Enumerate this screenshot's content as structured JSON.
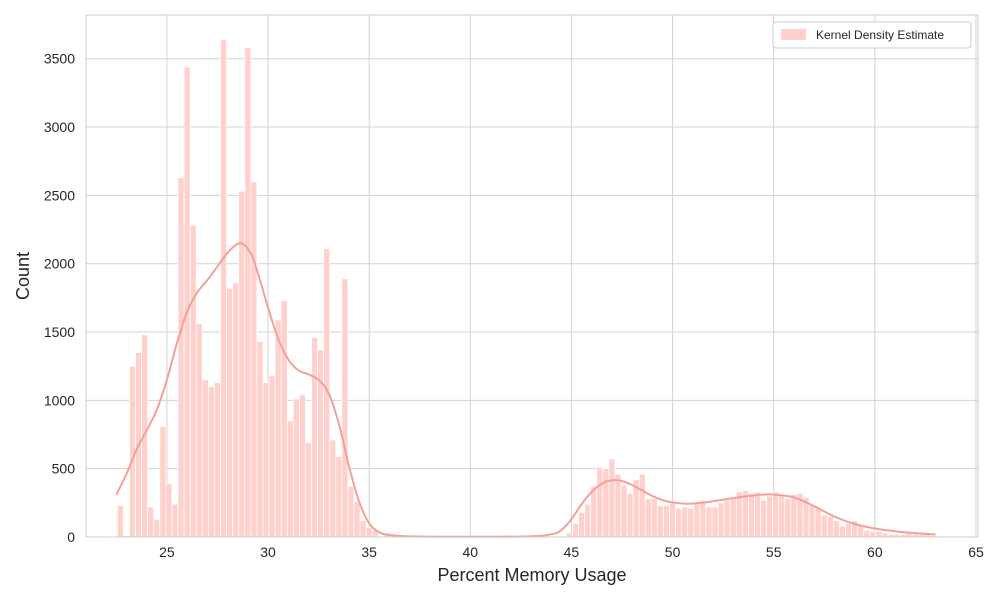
{
  "chart_data": {
    "type": "bar",
    "xlabel": "Percent Memory Usage",
    "ylabel": "Count",
    "xlim": [
      21.0,
      65.1
    ],
    "ylim": [
      0,
      3820
    ],
    "xticks": [
      25,
      30,
      35,
      40,
      45,
      50,
      55,
      60,
      65
    ],
    "yticks": [
      0,
      500,
      1000,
      1500,
      2000,
      2500,
      3000,
      3500
    ],
    "grid": true,
    "legend_position": "top-right",
    "bin_width": 0.3,
    "colors": {
      "bar": "#ffd0cc",
      "kde": "#f4a09a",
      "grid": "#d3d3d3"
    },
    "series": [
      {
        "name": "Kernel Density Estimate",
        "bars": [
          {
            "x": 22.7,
            "y": 230
          },
          {
            "x": 23.0,
            "y": 10
          },
          {
            "x": 23.3,
            "y": 1250
          },
          {
            "x": 23.6,
            "y": 1350
          },
          {
            "x": 23.9,
            "y": 1480
          },
          {
            "x": 24.2,
            "y": 220
          },
          {
            "x": 24.5,
            "y": 130
          },
          {
            "x": 24.8,
            "y": 810
          },
          {
            "x": 25.1,
            "y": 390
          },
          {
            "x": 25.4,
            "y": 240
          },
          {
            "x": 25.7,
            "y": 2630
          },
          {
            "x": 26.0,
            "y": 3440
          },
          {
            "x": 26.3,
            "y": 2280
          },
          {
            "x": 26.6,
            "y": 1560
          },
          {
            "x": 26.9,
            "y": 1150
          },
          {
            "x": 27.2,
            "y": 1100
          },
          {
            "x": 27.5,
            "y": 1130
          },
          {
            "x": 27.8,
            "y": 3640
          },
          {
            "x": 28.1,
            "y": 1820
          },
          {
            "x": 28.4,
            "y": 1860
          },
          {
            "x": 28.7,
            "y": 2530
          },
          {
            "x": 29.0,
            "y": 3580
          },
          {
            "x": 29.3,
            "y": 2600
          },
          {
            "x": 29.6,
            "y": 1430
          },
          {
            "x": 29.9,
            "y": 1130
          },
          {
            "x": 30.2,
            "y": 1180
          },
          {
            "x": 30.5,
            "y": 1590
          },
          {
            "x": 30.8,
            "y": 1730
          },
          {
            "x": 31.1,
            "y": 850
          },
          {
            "x": 31.4,
            "y": 1010
          },
          {
            "x": 31.7,
            "y": 1040
          },
          {
            "x": 32.0,
            "y": 690
          },
          {
            "x": 32.3,
            "y": 1460
          },
          {
            "x": 32.6,
            "y": 1370
          },
          {
            "x": 32.9,
            "y": 2110
          },
          {
            "x": 33.2,
            "y": 710
          },
          {
            "x": 33.5,
            "y": 590
          },
          {
            "x": 33.8,
            "y": 1890
          },
          {
            "x": 34.1,
            "y": 370
          },
          {
            "x": 34.4,
            "y": 260
          },
          {
            "x": 34.7,
            "y": 120
          },
          {
            "x": 35.0,
            "y": 70
          },
          {
            "x": 35.3,
            "y": 50
          },
          {
            "x": 35.9,
            "y": 30
          },
          {
            "x": 44.9,
            "y": 30
          },
          {
            "x": 45.2,
            "y": 100
          },
          {
            "x": 45.5,
            "y": 180
          },
          {
            "x": 45.8,
            "y": 240
          },
          {
            "x": 46.1,
            "y": 370
          },
          {
            "x": 46.4,
            "y": 510
          },
          {
            "x": 46.7,
            "y": 500
          },
          {
            "x": 47.0,
            "y": 570
          },
          {
            "x": 47.3,
            "y": 460
          },
          {
            "x": 47.6,
            "y": 380
          },
          {
            "x": 47.9,
            "y": 320
          },
          {
            "x": 48.2,
            "y": 420
          },
          {
            "x": 48.5,
            "y": 460
          },
          {
            "x": 48.8,
            "y": 280
          },
          {
            "x": 49.1,
            "y": 280
          },
          {
            "x": 49.4,
            "y": 230
          },
          {
            "x": 49.7,
            "y": 230
          },
          {
            "x": 50.0,
            "y": 250
          },
          {
            "x": 50.3,
            "y": 210
          },
          {
            "x": 50.6,
            "y": 220
          },
          {
            "x": 50.9,
            "y": 210
          },
          {
            "x": 51.2,
            "y": 240
          },
          {
            "x": 51.5,
            "y": 270
          },
          {
            "x": 51.8,
            "y": 220
          },
          {
            "x": 52.1,
            "y": 220
          },
          {
            "x": 52.4,
            "y": 250
          },
          {
            "x": 52.7,
            "y": 270
          },
          {
            "x": 53.0,
            "y": 290
          },
          {
            "x": 53.3,
            "y": 330
          },
          {
            "x": 53.6,
            "y": 340
          },
          {
            "x": 53.9,
            "y": 320
          },
          {
            "x": 54.2,
            "y": 330
          },
          {
            "x": 54.5,
            "y": 270
          },
          {
            "x": 54.8,
            "y": 300
          },
          {
            "x": 55.1,
            "y": 330
          },
          {
            "x": 55.4,
            "y": 300
          },
          {
            "x": 55.7,
            "y": 280
          },
          {
            "x": 56.0,
            "y": 310
          },
          {
            "x": 56.3,
            "y": 320
          },
          {
            "x": 56.6,
            "y": 290
          },
          {
            "x": 56.9,
            "y": 230
          },
          {
            "x": 57.2,
            "y": 210
          },
          {
            "x": 57.5,
            "y": 160
          },
          {
            "x": 57.8,
            "y": 150
          },
          {
            "x": 58.1,
            "y": 120
          },
          {
            "x": 58.4,
            "y": 80
          },
          {
            "x": 58.7,
            "y": 100
          },
          {
            "x": 59.0,
            "y": 120
          },
          {
            "x": 59.3,
            "y": 90
          },
          {
            "x": 59.6,
            "y": 50
          },
          {
            "x": 59.9,
            "y": 40
          },
          {
            "x": 60.2,
            "y": 40
          },
          {
            "x": 60.5,
            "y": 30
          },
          {
            "x": 60.8,
            "y": 20
          },
          {
            "x": 61.1,
            "y": 20
          },
          {
            "x": 61.4,
            "y": 20
          },
          {
            "x": 61.7,
            "y": 30
          },
          {
            "x": 62.0,
            "y": 20
          },
          {
            "x": 62.3,
            "y": 20
          },
          {
            "x": 62.6,
            "y": 20
          },
          {
            "x": 62.9,
            "y": 10
          }
        ],
        "kde": [
          [
            22.5,
            310
          ],
          [
            23.0,
            460
          ],
          [
            23.5,
            640
          ],
          [
            24.0,
            780
          ],
          [
            24.5,
            930
          ],
          [
            25.0,
            1150
          ],
          [
            25.5,
            1420
          ],
          [
            26.0,
            1650
          ],
          [
            26.5,
            1790
          ],
          [
            27.0,
            1880
          ],
          [
            27.5,
            1980
          ],
          [
            28.0,
            2080
          ],
          [
            28.5,
            2145
          ],
          [
            28.8,
            2140
          ],
          [
            29.2,
            2060
          ],
          [
            29.6,
            1880
          ],
          [
            30.0,
            1680
          ],
          [
            30.5,
            1450
          ],
          [
            31.0,
            1300
          ],
          [
            31.5,
            1220
          ],
          [
            32.0,
            1190
          ],
          [
            32.5,
            1150
          ],
          [
            33.0,
            1050
          ],
          [
            33.5,
            830
          ],
          [
            34.0,
            520
          ],
          [
            34.5,
            260
          ],
          [
            35.0,
            100
          ],
          [
            35.5,
            35
          ],
          [
            36.0,
            15
          ],
          [
            37.0,
            5
          ],
          [
            40.0,
            2
          ],
          [
            43.0,
            5
          ],
          [
            44.0,
            20
          ],
          [
            44.5,
            50
          ],
          [
            45.0,
            130
          ],
          [
            45.5,
            240
          ],
          [
            46.0,
            330
          ],
          [
            46.5,
            390
          ],
          [
            47.0,
            415
          ],
          [
            47.5,
            410
          ],
          [
            48.0,
            380
          ],
          [
            48.5,
            340
          ],
          [
            49.0,
            300
          ],
          [
            49.5,
            270
          ],
          [
            50.0,
            253
          ],
          [
            50.5,
            245
          ],
          [
            51.0,
            245
          ],
          [
            52.0,
            262
          ],
          [
            53.0,
            285
          ],
          [
            54.0,
            305
          ],
          [
            54.5,
            310
          ],
          [
            55.0,
            310
          ],
          [
            56.0,
            290
          ],
          [
            57.0,
            225
          ],
          [
            58.0,
            150
          ],
          [
            59.0,
            95
          ],
          [
            60.0,
            62
          ],
          [
            61.0,
            42
          ],
          [
            62.0,
            28
          ],
          [
            63.0,
            18
          ]
        ]
      }
    ]
  }
}
